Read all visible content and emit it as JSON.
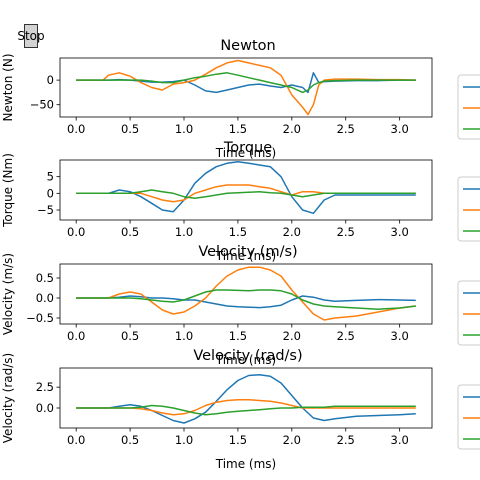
{
  "stop_button": {
    "label": "Stop"
  },
  "colors": {
    "series1": "#1f77b4",
    "series2": "#ff7f0e",
    "series3": "#2ca02c"
  },
  "chart_data": [
    {
      "type": "line",
      "title": "Newton",
      "xlabel": "Time (ms)",
      "ylabel": "Newton (N)",
      "xlim": [
        -0.15,
        3.3
      ],
      "ylim": [
        -75,
        45
      ],
      "xticks": [
        "0.0",
        "0.5",
        "1.0",
        "1.5",
        "2.0",
        "2.5",
        "3.0"
      ],
      "yticks": [
        0,
        -50
      ],
      "ytick_labels": [
        "0",
        "−50"
      ],
      "x": [
        0,
        0.25,
        0.3,
        0.4,
        0.5,
        0.6,
        0.7,
        0.8,
        0.9,
        1.0,
        1.1,
        1.2,
        1.3,
        1.4,
        1.5,
        1.6,
        1.7,
        1.8,
        1.9,
        2.0,
        2.1,
        2.15,
        2.2,
        2.25,
        2.3,
        2.4,
        2.6,
        2.8,
        3.0,
        3.15
      ],
      "series": [
        {
          "values": [
            0,
            0,
            0,
            1,
            0,
            -2,
            -4,
            -4,
            -3,
            0,
            -10,
            -22,
            -25,
            -20,
            -15,
            -10,
            -8,
            -12,
            -15,
            -10,
            -15,
            -25,
            15,
            -5,
            -3,
            -2,
            -1,
            -1,
            0,
            0
          ]
        },
        {
          "values": [
            0,
            0,
            10,
            15,
            8,
            -5,
            -15,
            -20,
            -8,
            -5,
            0,
            12,
            25,
            35,
            40,
            35,
            30,
            25,
            10,
            -30,
            -55,
            -70,
            -50,
            -10,
            0,
            2,
            2,
            1,
            1,
            0
          ]
        },
        {
          "values": [
            0,
            0,
            0,
            0,
            0,
            0,
            -2,
            -5,
            -5,
            0,
            5,
            8,
            12,
            15,
            10,
            5,
            0,
            -5,
            -10,
            -15,
            -25,
            -20,
            -10,
            -5,
            -2,
            -1,
            0,
            0,
            0,
            0
          ]
        }
      ]
    },
    {
      "type": "line",
      "title": "Torque",
      "xlabel": "Time (ms)",
      "ylabel": "Torque (Nm)",
      "xlim": [
        -0.15,
        3.3
      ],
      "ylim": [
        -8,
        10
      ],
      "xticks": [
        "0.0",
        "0.5",
        "1.0",
        "1.5",
        "2.0",
        "2.5",
        "3.0"
      ],
      "yticks": [
        5,
        0,
        -5
      ],
      "ytick_labels": [
        "5",
        "0",
        "−5"
      ],
      "x": [
        0,
        0.3,
        0.4,
        0.5,
        0.6,
        0.7,
        0.8,
        0.9,
        1.0,
        1.1,
        1.2,
        1.3,
        1.4,
        1.5,
        1.6,
        1.7,
        1.8,
        1.9,
        2.0,
        2.1,
        2.2,
        2.3,
        2.4,
        2.6,
        2.8,
        3.0,
        3.15
      ],
      "series": [
        {
          "values": [
            0,
            0,
            1,
            0.5,
            -1,
            -3,
            -5,
            -5.5,
            -2,
            3,
            6,
            8,
            9,
            9.5,
            9,
            8.5,
            8,
            5,
            -1,
            -5,
            -6,
            -2,
            -0.5,
            -0.5,
            -0.5,
            -0.5,
            -0.5
          ]
        },
        {
          "values": [
            0,
            0,
            0,
            0,
            0,
            -1,
            -2,
            -2.5,
            -2,
            0,
            1,
            2,
            2.5,
            2.5,
            2.5,
            2,
            1.5,
            0.5,
            -0.5,
            0.5,
            0.5,
            0,
            0,
            0,
            0,
            0,
            0
          ]
        },
        {
          "values": [
            0,
            0,
            0,
            0,
            0.5,
            1,
            0.5,
            0,
            -1,
            -1.5,
            -1,
            -0.5,
            0,
            0.2,
            0.3,
            0.5,
            0.2,
            0,
            -0.5,
            -1,
            -0.5,
            0,
            0,
            0,
            0,
            0,
            0
          ]
        }
      ]
    },
    {
      "type": "line",
      "title": "Velocity (m/s)",
      "xlabel": "Time (ms)",
      "ylabel": "Velocity (m/s)",
      "xlim": [
        -0.15,
        3.3
      ],
      "ylim": [
        -0.65,
        0.85
      ],
      "xticks": [
        "0.0",
        "0.5",
        "1.0",
        "1.5",
        "2.0",
        "2.5",
        "3.0"
      ],
      "yticks": [
        0.5,
        0,
        -0.5
      ],
      "ytick_labels": [
        "0.5",
        "0.0",
        "−0.5"
      ],
      "x": [
        0,
        0.3,
        0.4,
        0.5,
        0.6,
        0.7,
        0.8,
        0.9,
        1.0,
        1.1,
        1.2,
        1.3,
        1.4,
        1.5,
        1.6,
        1.7,
        1.8,
        1.9,
        2.0,
        2.1,
        2.2,
        2.3,
        2.4,
        2.6,
        2.8,
        3.0,
        3.15
      ],
      "series": [
        {
          "values": [
            0,
            0,
            0.02,
            0.05,
            0.03,
            0,
            0,
            -0.02,
            -0.05,
            -0.05,
            -0.1,
            -0.15,
            -0.2,
            -0.22,
            -0.23,
            -0.24,
            -0.22,
            -0.18,
            -0.05,
            0.05,
            0.02,
            -0.05,
            -0.08,
            -0.06,
            -0.04,
            -0.05,
            -0.06
          ]
        },
        {
          "values": [
            0,
            0,
            0.1,
            0.15,
            0.1,
            -0.1,
            -0.3,
            -0.4,
            -0.35,
            -0.2,
            0,
            0.3,
            0.55,
            0.7,
            0.77,
            0.77,
            0.7,
            0.55,
            0.2,
            -0.1,
            -0.4,
            -0.55,
            -0.5,
            -0.45,
            -0.35,
            -0.25,
            -0.2
          ]
        },
        {
          "values": [
            0,
            0,
            0,
            0,
            -0.02,
            -0.05,
            -0.08,
            -0.1,
            -0.05,
            0.05,
            0.15,
            0.2,
            0.2,
            0.19,
            0.18,
            0.2,
            0.2,
            0.18,
            0.1,
            -0.05,
            -0.15,
            -0.2,
            -0.22,
            -0.25,
            -0.28,
            -0.25,
            -0.2
          ]
        }
      ]
    },
    {
      "type": "line",
      "title": "Velocity (rad/s)",
      "xlabel": "Time (ms)",
      "ylabel": "Velocity (rad/s)",
      "xlim": [
        -0.15,
        3.3
      ],
      "ylim": [
        -2.4,
        4.8
      ],
      "xticks": [
        "0.0",
        "0.5",
        "1.0",
        "1.5",
        "2.0",
        "2.5",
        "3.0"
      ],
      "yticks": [
        2.5,
        0
      ],
      "ytick_labels": [
        "2.5",
        "0.0"
      ],
      "x": [
        0,
        0.3,
        0.4,
        0.5,
        0.6,
        0.7,
        0.8,
        0.9,
        1.0,
        1.1,
        1.2,
        1.3,
        1.4,
        1.5,
        1.6,
        1.7,
        1.8,
        1.9,
        2.0,
        2.1,
        2.2,
        2.3,
        2.4,
        2.6,
        2.8,
        3.0,
        3.15
      ],
      "series": [
        {
          "values": [
            0,
            0,
            0.2,
            0.4,
            0.2,
            -0.3,
            -0.9,
            -1.5,
            -1.8,
            -1.3,
            -0.5,
            0.8,
            2.2,
            3.3,
            3.9,
            4.0,
            3.8,
            3.0,
            1.5,
            0,
            -1.2,
            -1.5,
            -1.3,
            -1.0,
            -0.9,
            -0.8,
            -0.7
          ]
        },
        {
          "values": [
            0,
            0,
            0,
            0,
            -0.1,
            -0.3,
            -0.6,
            -0.8,
            -0.7,
            -0.3,
            0.3,
            0.7,
            0.9,
            1.0,
            1.0,
            0.9,
            0.8,
            0.6,
            0.3,
            0,
            0,
            0,
            0,
            0,
            0,
            0,
            0
          ]
        },
        {
          "values": [
            0,
            0,
            0,
            0,
            0.1,
            0.3,
            0.2,
            0,
            -0.3,
            -0.6,
            -0.8,
            -0.7,
            -0.5,
            -0.4,
            -0.3,
            -0.2,
            -0.1,
            0,
            0,
            0.1,
            0.1,
            0.1,
            0.2,
            0.2,
            0.2,
            0.2,
            0.2
          ]
        }
      ]
    }
  ]
}
